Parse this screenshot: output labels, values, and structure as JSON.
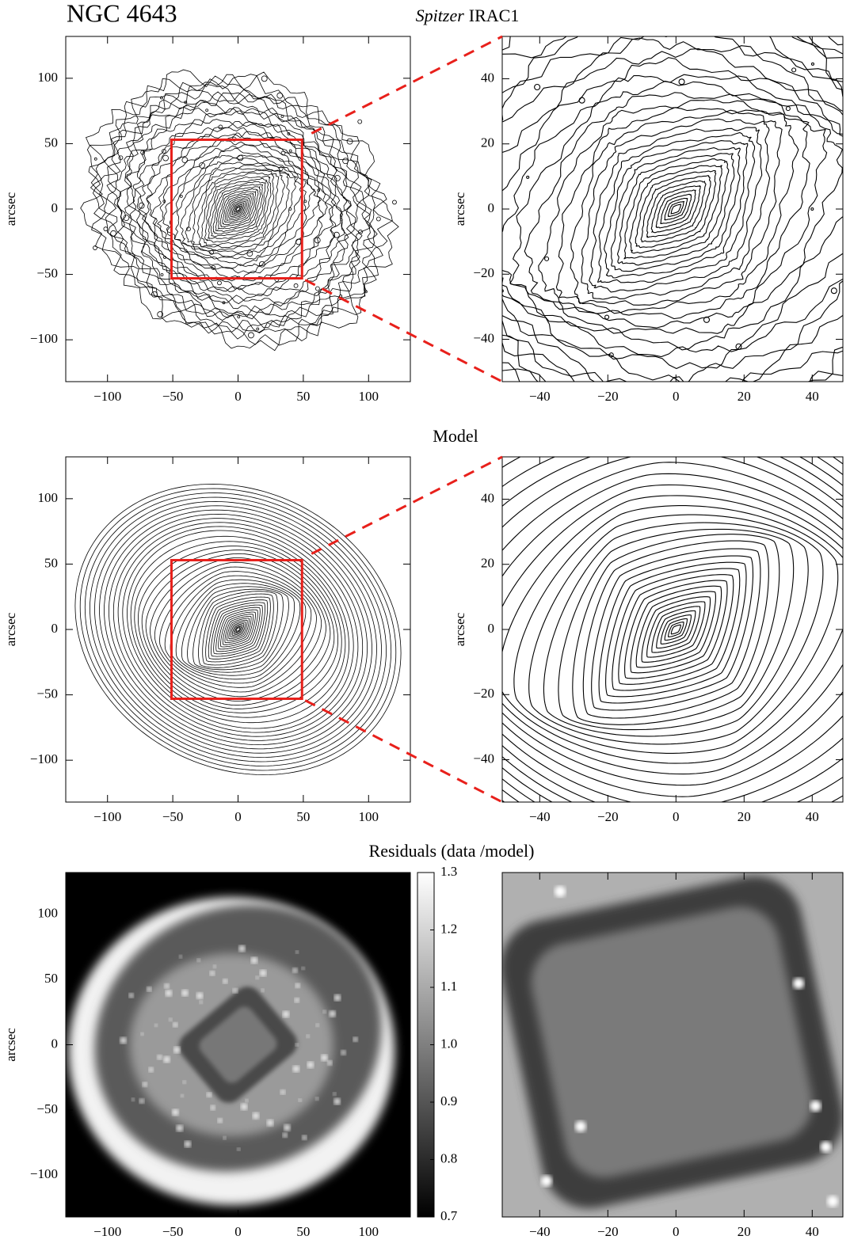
{
  "figure_title": "NGC 4643",
  "row_titles": [
    {
      "emphasis": "Spitzer",
      "text": "IRAC1"
    },
    "Model",
    "Residuals (data /model)"
  ],
  "chart_data": [
    {
      "type": "contour",
      "ylabel": "arcsec",
      "xlim": [
        -132,
        132
      ],
      "ylim": [
        -132,
        132
      ],
      "xticks": [
        {
          "value": -100,
          "label": "−100"
        },
        {
          "value": -50,
          "label": "−50"
        },
        0,
        50,
        100
      ],
      "yticks": [
        {
          "value": -100,
          "label": "−100"
        },
        {
          "value": -50,
          "label": "−50"
        },
        0,
        50,
        100
      ]
    },
    {
      "type": "contour",
      "ylabel": "arcsec",
      "xlim": [
        -51,
        49
      ],
      "ylim": [
        -53,
        53
      ],
      "xticks": [
        {
          "value": -40,
          "label": "−40"
        },
        {
          "value": -20,
          "label": "−20"
        },
        0,
        20,
        40
      ],
      "yticks": [
        {
          "value": -40,
          "label": "−40"
        },
        {
          "value": -20,
          "label": "−20"
        },
        0,
        20,
        40
      ]
    },
    {
      "type": "contour",
      "ylabel": "arcsec",
      "xlim": [
        -132,
        132
      ],
      "ylim": [
        -132,
        132
      ],
      "xticks": [
        {
          "value": -100,
          "label": "−100"
        },
        {
          "value": -50,
          "label": "−50"
        },
        0,
        50,
        100
      ],
      "yticks": [
        {
          "value": -100,
          "label": "−100"
        },
        {
          "value": -50,
          "label": "−50"
        },
        0,
        50,
        100
      ]
    },
    {
      "type": "contour",
      "ylabel": "arcsec",
      "xlim": [
        -51,
        49
      ],
      "ylim": [
        -53,
        53
      ],
      "xticks": [
        {
          "value": -40,
          "label": "−40"
        },
        {
          "value": -20,
          "label": "−20"
        },
        0,
        20,
        40
      ],
      "yticks": [
        {
          "value": -40,
          "label": "−40"
        },
        {
          "value": -20,
          "label": "−20"
        },
        0,
        20,
        40
      ]
    },
    {
      "type": "image",
      "ylabel": "arcsec",
      "xlim": [
        -132,
        132
      ],
      "ylim": [
        -132,
        132
      ],
      "xticks": [
        {
          "value": -100,
          "label": "−100"
        },
        {
          "value": -50,
          "label": "−50"
        },
        0,
        50,
        100
      ],
      "yticks": [
        {
          "value": -100,
          "label": "−100"
        },
        {
          "value": -50,
          "label": "−50"
        },
        0,
        50,
        100
      ],
      "colorbar": {
        "lim": [
          0.7,
          1.3
        ],
        "ticks": [
          0.7,
          0.8,
          0.9,
          {
            "value": 1,
            "label": "1.0"
          },
          1.1,
          1.2,
          1.3
        ]
      }
    },
    {
      "type": "image",
      "xlim": [
        -51,
        49
      ],
      "xticks": [
        {
          "value": -40,
          "label": "−40"
        },
        {
          "value": -20,
          "label": "−20"
        },
        0,
        20,
        40
      ]
    }
  ]
}
